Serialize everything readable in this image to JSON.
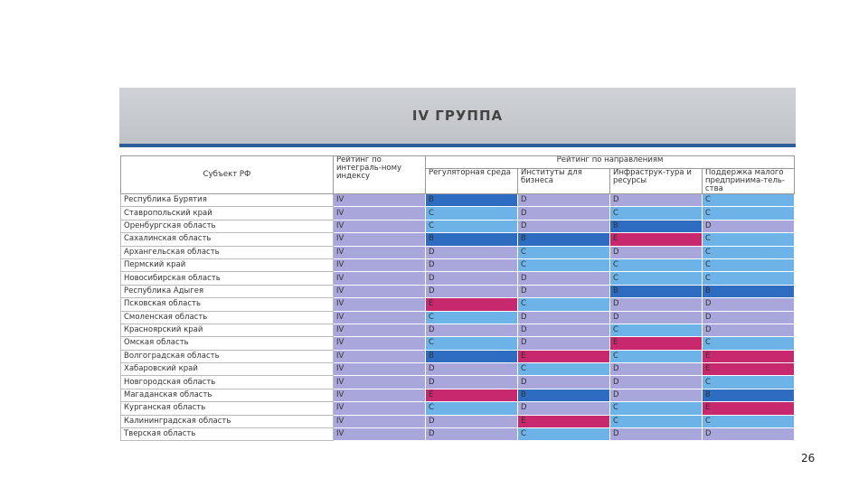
{
  "header": {
    "title": "IV ГРУППА"
  },
  "table": {
    "columns": {
      "subject": "Субъект РФ",
      "integral": "Рейтинг по интеграль-ному индексу",
      "directions": "Рейтинг по направлениям",
      "sub": [
        "Регуляторная среда",
        "Институты для бизнеса",
        "Инфраструк-тура и ресурсы",
        "Поддержка малого предпринима-тель-ства"
      ]
    },
    "grade_colors": {
      "B": "#2d6cc0",
      "C": "#6db3e8",
      "D": "#a9a6dc",
      "E": "#c8286e"
    },
    "integral_color": "#a9a6dc",
    "rows": [
      [
        "Республика Бурятия",
        "IV",
        "B",
        "D",
        "D",
        "C"
      ],
      [
        "Ставропольский край",
        "IV",
        "C",
        "D",
        "C",
        "C"
      ],
      [
        "Оренбургская область",
        "IV",
        "C",
        "D",
        "B",
        "D"
      ],
      [
        "Сахалинская область",
        "IV",
        "B",
        "B",
        "E",
        "C"
      ],
      [
        "Архангельская область",
        "IV",
        "D",
        "C",
        "D",
        "C"
      ],
      [
        "Пермский край",
        "IV",
        "D",
        "C",
        "C",
        "C"
      ],
      [
        "Новосибирская область",
        "IV",
        "D",
        "D",
        "C",
        "C"
      ],
      [
        "Республика Адыгея",
        "IV",
        "D",
        "D",
        "B",
        "B"
      ],
      [
        "Псковская область",
        "IV",
        "E",
        "C",
        "D",
        "D"
      ],
      [
        "Смоленская область",
        "IV",
        "C",
        "D",
        "D",
        "D"
      ],
      [
        "Красноярский край",
        "IV",
        "D",
        "D",
        "C",
        "D"
      ],
      [
        "Омская область",
        "IV",
        "C",
        "D",
        "E",
        "C"
      ],
      [
        "Волгоградская область",
        "IV",
        "B",
        "E",
        "C",
        "E"
      ],
      [
        "Хабаровский край",
        "IV",
        "D",
        "C",
        "D",
        "E"
      ],
      [
        "Новгородская область",
        "IV",
        "D",
        "D",
        "D",
        "C"
      ],
      [
        "Магаданская область",
        "IV",
        "E",
        "B",
        "D",
        "B"
      ],
      [
        "Курганская область",
        "IV",
        "C",
        "D",
        "C",
        "E"
      ],
      [
        "Калининградская область",
        "IV",
        "D",
        "E",
        "C",
        "C"
      ],
      [
        "Тверская область",
        "IV",
        "D",
        "C",
        "D",
        "D"
      ]
    ]
  },
  "footer": {
    "page_number": "26"
  }
}
